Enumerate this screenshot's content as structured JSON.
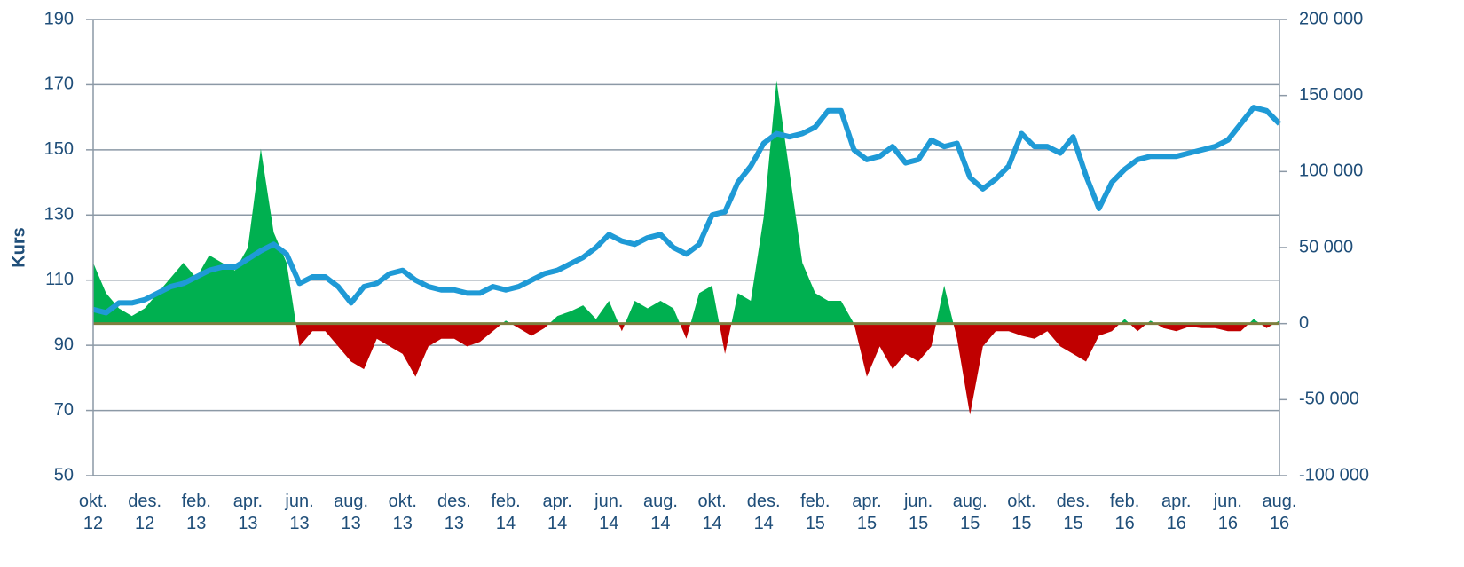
{
  "chart_data": [
    {
      "type": "line",
      "y_label": "Kurs",
      "categories": [
        "okt. 12",
        null,
        null,
        null,
        "des. 12",
        null,
        null,
        null,
        "feb. 13",
        null,
        null,
        null,
        "apr. 13",
        null,
        null,
        null,
        "jun. 13",
        null,
        null,
        null,
        "aug. 13",
        null,
        null,
        null,
        "okt. 13",
        null,
        null,
        null,
        "des. 13",
        null,
        null,
        null,
        "feb. 14",
        null,
        null,
        null,
        "apr. 14",
        null,
        null,
        null,
        "jun. 14",
        null,
        null,
        null,
        "aug. 14",
        null,
        null,
        null,
        "okt. 14",
        null,
        null,
        null,
        "des. 14",
        null,
        null,
        null,
        "feb. 15",
        null,
        null,
        null,
        "apr. 15",
        null,
        null,
        null,
        "jun. 15",
        null,
        null,
        null,
        "aug. 15",
        null,
        null,
        null,
        "okt. 15",
        null,
        null,
        null,
        "des. 15",
        null,
        null,
        null,
        "feb. 16",
        null,
        null,
        null,
        "apr. 16",
        null,
        null,
        null,
        "jun. 16",
        null,
        null,
        null,
        "aug. 16"
      ],
      "values": [
        101,
        100,
        103,
        103,
        104,
        106,
        108,
        109,
        111,
        113,
        114,
        114,
        116.5,
        119,
        121,
        118,
        109,
        111,
        111,
        108,
        103,
        108,
        109,
        112,
        113,
        110,
        108,
        107,
        107,
        106,
        106,
        108,
        107,
        108,
        110,
        112,
        113,
        115,
        117,
        120,
        124,
        122,
        121,
        123,
        124,
        120,
        118,
        121,
        130,
        131,
        140,
        145,
        152,
        155,
        154,
        155,
        157,
        162,
        162,
        150,
        147,
        148,
        151,
        146,
        147,
        153,
        151,
        152,
        141.5,
        138,
        141,
        145,
        155,
        151,
        151,
        149,
        154,
        142,
        132,
        140,
        144,
        147,
        148,
        148,
        148,
        149,
        150,
        151,
        153,
        158,
        163,
        162,
        158
      ],
      "color": "#1f9ad6",
      "ylim": [
        50,
        190
      ],
      "yticks": [
        50,
        70,
        90,
        110,
        130,
        150,
        170,
        190
      ],
      "grid": true
    },
    {
      "type": "area",
      "axis": "y2",
      "values": [
        40000,
        20000,
        10000,
        5000,
        10000,
        20000,
        30000,
        40000,
        30000,
        45000,
        40000,
        35000,
        50000,
        115000,
        60000,
        40000,
        -15000,
        -5000,
        -5000,
        -15000,
        -25000,
        -30000,
        -10000,
        -15000,
        -20000,
        -35000,
        -15000,
        -10000,
        -10000,
        -15000,
        -12000,
        -5000,
        2000,
        -3000,
        -8000,
        -3000,
        5000,
        8000,
        12000,
        3000,
        15000,
        -5000,
        15000,
        10000,
        15000,
        10000,
        -10000,
        20000,
        25000,
        -20000,
        20000,
        15000,
        70000,
        160000,
        100000,
        40000,
        20000,
        15000,
        15000,
        0,
        -35000,
        -15000,
        -30000,
        -20000,
        -25000,
        -15000,
        25000,
        -10000,
        -60000,
        -15000,
        -5000,
        -5000,
        -8000,
        -10000,
        -5000,
        -15000,
        -20000,
        -25000,
        -8000,
        -5000,
        3000,
        -5000,
        2000,
        -3000,
        -5000,
        -2000,
        -3000,
        -3000,
        -5000,
        -5000,
        3000,
        -3000,
        2000
      ],
      "color_positive": "#00b050",
      "color_negative": "#c00000",
      "y2lim": [
        -100000,
        200000
      ],
      "y2ticks": [
        {
          "value": -100000,
          "label": "-100 000"
        },
        {
          "value": -50000,
          "label": "-50 000"
        },
        0,
        {
          "value": 50000,
          "label": "50 000"
        },
        {
          "value": 100000,
          "label": "100 000"
        },
        {
          "value": 150000,
          "label": "150 000"
        },
        {
          "value": 200000,
          "label": "200 000"
        }
      ]
    }
  ]
}
